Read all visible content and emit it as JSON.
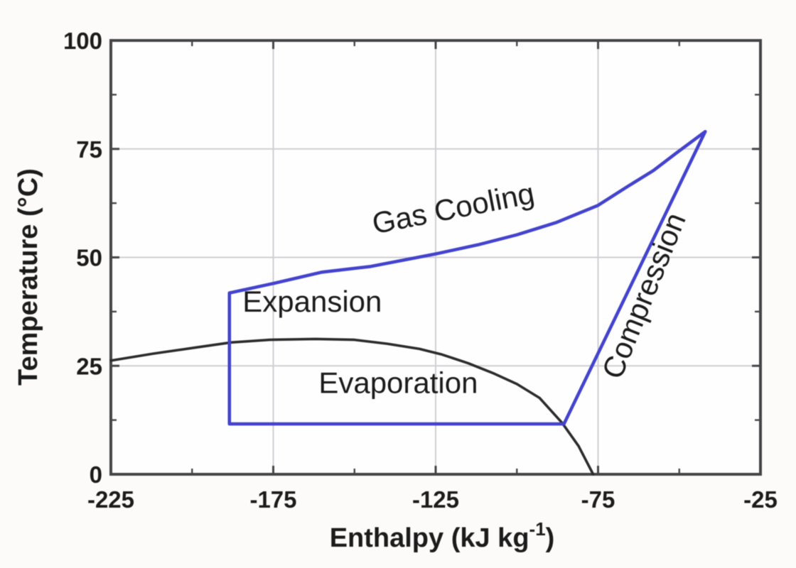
{
  "chart_data": {
    "type": "line",
    "title": "",
    "xlabel": {
      "text": "Enthalpy (kJ kg",
      "sup": "-1",
      "suffix": ")"
    },
    "ylabel": "Temperature (°C)",
    "xlim": [
      -225,
      -25
    ],
    "ylim": [
      0,
      100
    ],
    "x_ticks": [
      "-225",
      "-175",
      "-125",
      "-75",
      "-25"
    ],
    "x_tick_values": [
      -225,
      -175,
      -125,
      -75,
      -25
    ],
    "x_minor_ticks": [
      -200,
      -150,
      -100,
      -50
    ],
    "y_ticks": [
      "100",
      "75",
      "50",
      "25",
      "0"
    ],
    "y_tick_values": [
      100,
      75,
      50,
      25,
      0
    ],
    "y_minor_ticks": [
      12.5,
      37.5,
      62.5,
      87.5
    ],
    "grid": true,
    "legend": "none",
    "colors": {
      "cycle": "#4343cd",
      "saturation": "#2c2c2c",
      "grid": "#d0ced2",
      "axis": "#454548",
      "text": "#1b1b1b",
      "plot_background": "#fefefe"
    },
    "series": [
      {
        "name": "saturation-dome",
        "role": "phase-boundary",
        "color_key": "saturation",
        "width": 3.6,
        "points": [
          [
            -225,
            26.2
          ],
          [
            -212,
            27.8
          ],
          [
            -200,
            29.1
          ],
          [
            -188,
            30.4
          ],
          [
            -176,
            31.0
          ],
          [
            -162,
            31.2
          ],
          [
            -150,
            31.0
          ],
          [
            -140,
            30.1
          ],
          [
            -130,
            28.9
          ],
          [
            -123,
            27.6
          ],
          [
            -115,
            25.6
          ],
          [
            -107,
            23.2
          ],
          [
            -100,
            20.8
          ],
          [
            -93,
            17.6
          ],
          [
            -86,
            11.8
          ],
          [
            -81,
            6.5
          ],
          [
            -76.5,
            0
          ]
        ]
      },
      {
        "name": "refrigeration-cycle",
        "role": "cycle",
        "color_key": "cycle",
        "width": 4.6,
        "points": [
          [
            -188.5,
            41.8
          ],
          [
            -188.5,
            11.6
          ],
          [
            -85.5,
            11.6
          ],
          [
            -42,
            79
          ],
          [
            -51,
            74
          ],
          [
            -58,
            70
          ],
          [
            -66,
            66.3
          ],
          [
            -75,
            62
          ],
          [
            -88,
            58
          ],
          [
            -100,
            55.2
          ],
          [
            -112,
            52.9
          ],
          [
            -125,
            50.8
          ],
          [
            -145,
            47.9
          ],
          [
            -160,
            46.6
          ],
          [
            -175,
            44
          ],
          [
            -188.5,
            41.8
          ]
        ]
      }
    ],
    "annotations": [
      {
        "id": "gas-cooling",
        "text": "Gas Cooling",
        "x": -119,
        "y": 59,
        "angle": -11
      },
      {
        "id": "expansion",
        "text": "Expansion",
        "x": -163,
        "y": 37.5,
        "angle": 0
      },
      {
        "id": "evaporation",
        "text": "Evaporation",
        "x": -136.5,
        "y": 18.7,
        "angle": 0
      },
      {
        "id": "compression",
        "text": "Compression",
        "x": -58,
        "y": 40.3,
        "angle": -68
      }
    ]
  }
}
